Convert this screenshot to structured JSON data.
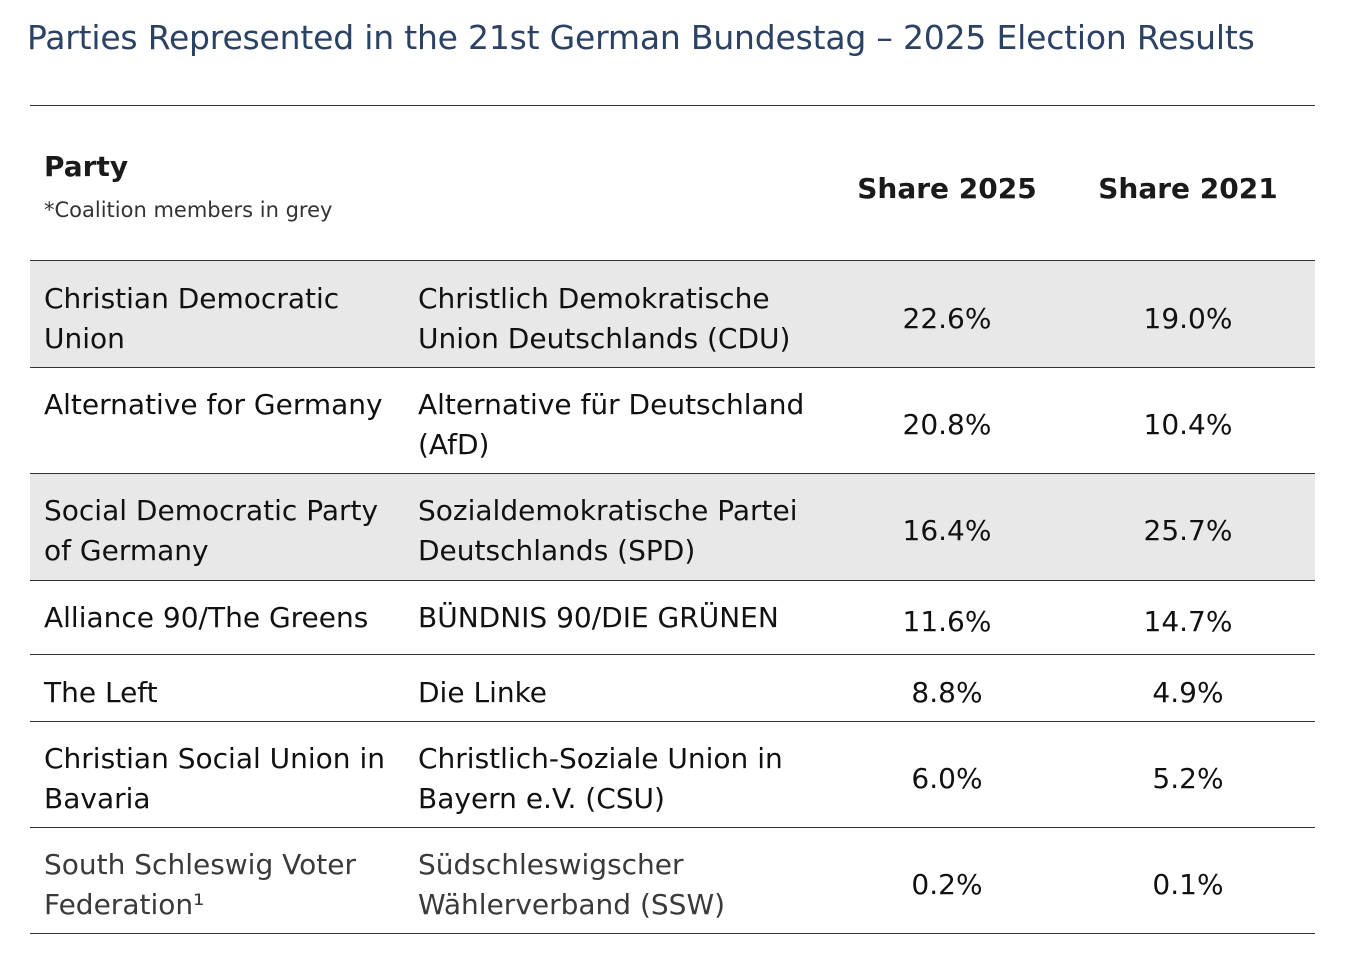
{
  "title": "Parties Represented in the 21st German Bundestag – 2025 Election Results",
  "header": {
    "party": "Party",
    "note": "*Coalition members in grey",
    "share_2025": "Share 2025",
    "share_2021": "Share 2021"
  },
  "rows": [
    {
      "en": "Christian Democratic Union",
      "de": "Christlich Demokratische Union Deutschlands (CDU)",
      "share_2025": "22.6%",
      "share_2021": "19.0%",
      "coalition": true
    },
    {
      "en": "Alternative for Germany",
      "de": "Alternative für Deutschland (AfD)",
      "share_2025": "20.8%",
      "share_2021": "10.4%",
      "coalition": false
    },
    {
      "en": "Social Democratic Party of Germany",
      "de": "Sozialdemokratische Partei Deutschlands (SPD)",
      "share_2025": "16.4%",
      "share_2021": "25.7%",
      "coalition": true
    },
    {
      "en": "Alliance 90/The Greens",
      "de": "BÜNDNIS 90/DIE GRÜNEN",
      "share_2025": "11.6%",
      "share_2021": "14.7%",
      "coalition": false
    },
    {
      "en": "The Left",
      "de": "Die Linke",
      "share_2025": "8.8%",
      "share_2021": "4.9%",
      "coalition": false
    },
    {
      "en": "Christian Social Union in Bavaria",
      "de": "Christlich-Soziale Union in Bayern e.V. (CSU)",
      "share_2025": "6.0%",
      "share_2021": "5.2%",
      "coalition": false
    },
    {
      "en": "South Schleswig Voter Federation¹",
      "de": "Südschleswigscher Wählerverband (SSW)",
      "share_2025": "0.2%",
      "share_2021": "0.1%",
      "coalition": false
    }
  ],
  "colors": {
    "title": "#2c4264",
    "coalition_row": "#e8e8e8"
  }
}
